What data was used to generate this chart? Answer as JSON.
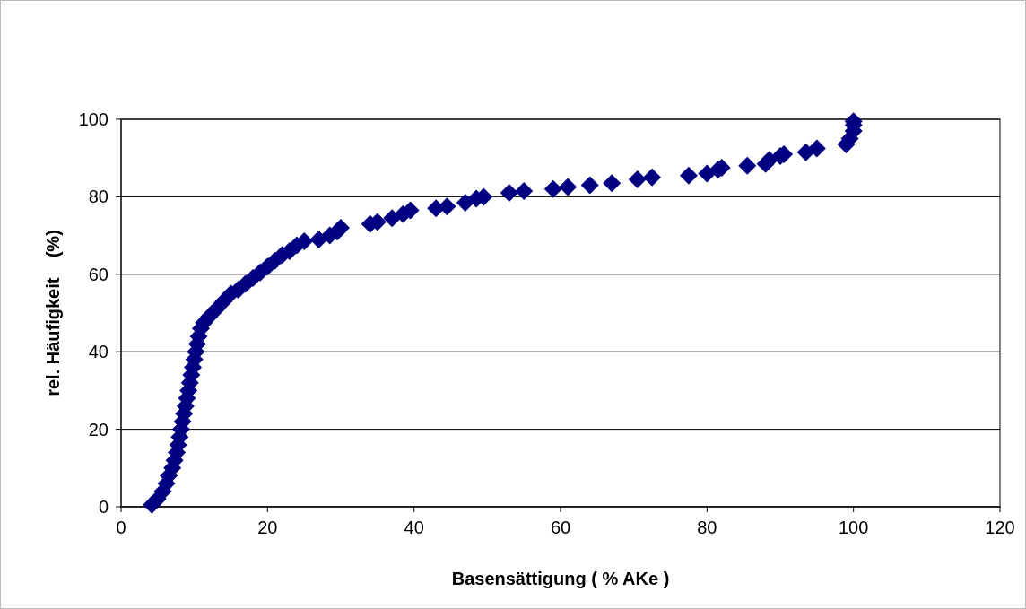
{
  "chart_data": {
    "type": "scatter",
    "xlabel": "Basensättigung ( % AKe )",
    "ylabel": "rel. Häufigkeit    (%)",
    "xlim": [
      0,
      120
    ],
    "xticks": [
      0,
      20,
      40,
      60,
      80,
      100,
      120
    ],
    "ylim": [
      0,
      100
    ],
    "yticks": [
      0,
      20,
      40,
      60,
      80,
      100
    ],
    "grid": "y",
    "marker": "diamond",
    "series": [
      {
        "color": "#000080",
        "x": [
          4.2,
          5,
          5.7,
          6.2,
          6.5,
          7,
          7.3,
          7.6,
          7.8,
          8,
          8.2,
          8.4,
          8.6,
          8.8,
          9,
          9.2,
          9.4,
          9.6,
          9.8,
          10,
          10.2,
          10.4,
          10.6,
          10.9,
          11.3,
          12,
          13,
          14,
          15,
          16,
          17,
          18,
          19,
          20,
          21,
          22,
          23,
          24,
          25,
          27,
          28.5,
          29.5,
          30,
          34,
          35,
          37,
          38.5,
          39.5,
          43,
          44.5,
          47,
          48.5,
          49.5,
          53,
          55,
          59,
          61,
          64,
          67,
          70.5,
          72.5,
          77.5,
          80,
          81.5,
          82,
          85.5,
          88,
          88.5,
          90,
          90.5,
          93.5,
          95,
          99,
          99.5,
          100,
          100,
          100
        ],
        "values": [
          0.5,
          2,
          4,
          6,
          8,
          10,
          12,
          14,
          16,
          18,
          20,
          22,
          24,
          26,
          28,
          30,
          32,
          34,
          36,
          38,
          40,
          42,
          44,
          46,
          47.5,
          49,
          51,
          53,
          55,
          56,
          57.5,
          59,
          60.5,
          62,
          63.5,
          65,
          66,
          67.5,
          68.5,
          69,
          70,
          71,
          72,
          73,
          73.5,
          74.5,
          75.5,
          76.5,
          77,
          77.5,
          78.5,
          79.5,
          80,
          81,
          81.5,
          82,
          82.5,
          83,
          83.5,
          84.5,
          85,
          85.5,
          86,
          87,
          87.5,
          88,
          88.5,
          89.5,
          90.5,
          91,
          91.5,
          92.5,
          93.5,
          95,
          97,
          98.5,
          99.5
        ]
      }
    ]
  }
}
